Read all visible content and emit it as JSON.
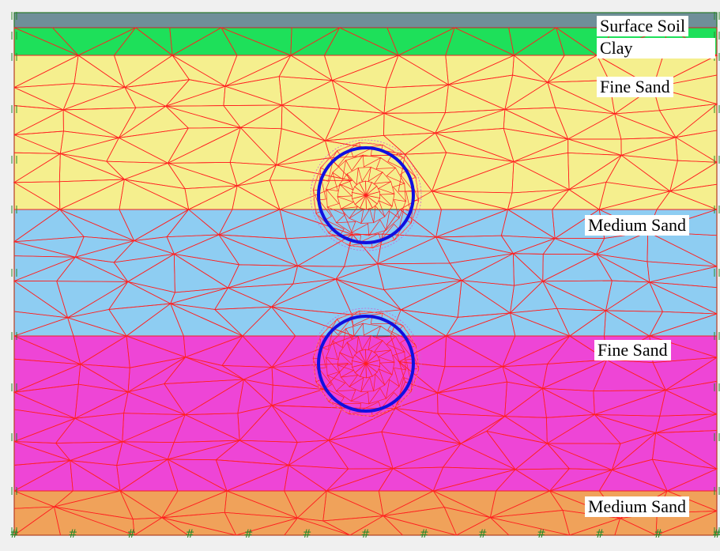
{
  "model": {
    "layers": [
      {
        "name": "Surface Soil",
        "color": "#6f8f99"
      },
      {
        "name": "Clay",
        "color": "#1ee05a"
      },
      {
        "name": "Fine Sand",
        "color": "#f5ef8e"
      },
      {
        "name": "Medium Sand",
        "color": "#8ecdf2"
      },
      {
        "name": "Fine Sand",
        "color": "#ee45d6"
      },
      {
        "name": "Medium Sand",
        "color": "#f0a25a"
      }
    ],
    "tunnels": [
      {
        "name": "upper-tunnel"
      },
      {
        "name": "lower-tunnel"
      }
    ],
    "colors": {
      "mesh": "#ff2020",
      "tunnel": "#1010e0",
      "boundary": "#2a7a2a",
      "fixity": "#2a8a2a"
    }
  }
}
